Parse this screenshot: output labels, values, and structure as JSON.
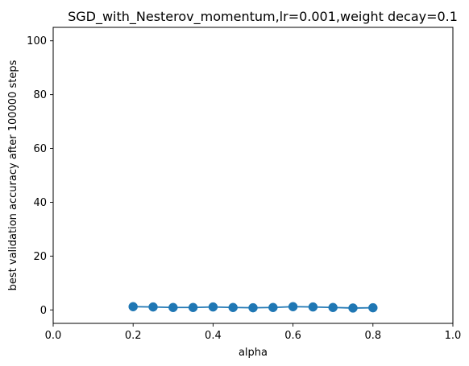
{
  "chart_data": {
    "type": "line",
    "title": "SGD_with_Nesterov_momentum,lr=0.001,weight decay=0.1",
    "xlabel": "alpha",
    "ylabel": "best validation accuracy after 100000 steps",
    "xlim": [
      0.0,
      1.0
    ],
    "ylim": [
      -5,
      105
    ],
    "xticks": [
      0.0,
      0.2,
      0.4,
      0.6,
      0.8,
      1.0
    ],
    "xtick_labels": [
      "0.0",
      "0.2",
      "0.4",
      "0.6",
      "0.8",
      "1.0"
    ],
    "yticks": [
      0,
      20,
      40,
      60,
      80,
      100
    ],
    "ytick_labels": [
      "0",
      "20",
      "40",
      "60",
      "80",
      "100"
    ],
    "grid": false,
    "series": [
      {
        "color": "#1f77b4",
        "marker": "circle",
        "x": [
          0.2,
          0.25,
          0.3,
          0.35,
          0.4,
          0.45,
          0.5,
          0.55,
          0.6,
          0.65,
          0.7,
          0.75,
          0.8
        ],
        "y": [
          1.2,
          1.1,
          0.9,
          0.9,
          1.1,
          0.9,
          0.8,
          0.9,
          1.2,
          1.1,
          0.9,
          0.7,
          0.8
        ]
      }
    ]
  }
}
